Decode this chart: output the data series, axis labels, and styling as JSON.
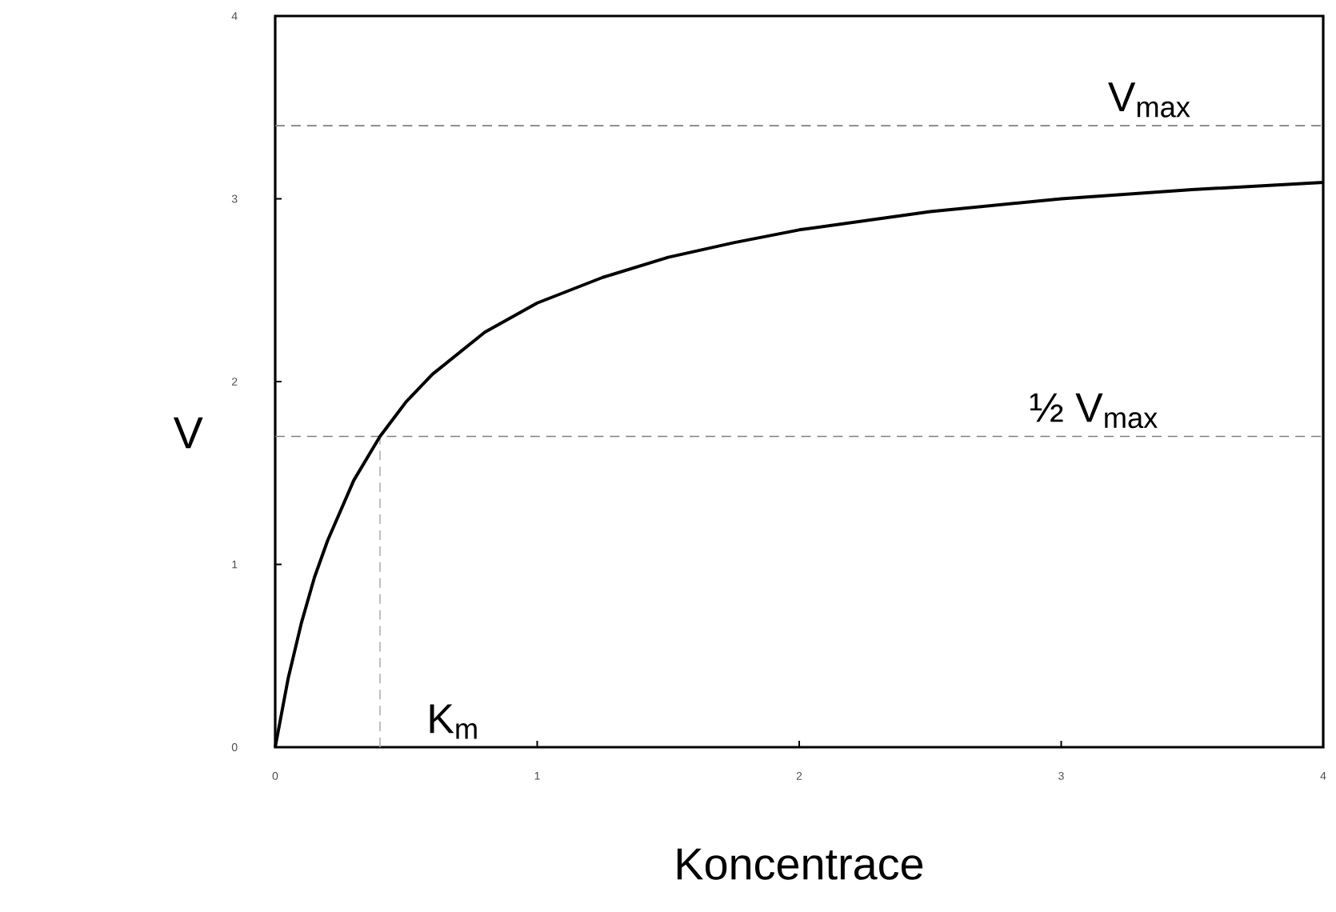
{
  "chart_data": {
    "type": "line",
    "xlabel": "Koncentrace",
    "ylabel": "V",
    "x": [
      0,
      0.05,
      0.1,
      0.15,
      0.2,
      0.3,
      0.4,
      0.5,
      0.6,
      0.8,
      1.0,
      1.25,
      1.5,
      1.75,
      2.0,
      2.5,
      3.0,
      3.5,
      4.0
    ],
    "values": [
      0,
      0.38,
      0.68,
      0.93,
      1.13,
      1.46,
      1.7,
      1.89,
      2.04,
      2.27,
      2.43,
      2.57,
      2.68,
      2.76,
      2.83,
      2.93,
      3.0,
      3.05,
      3.09
    ],
    "color": "#000000",
    "xlim": [
      0,
      4
    ],
    "ylim": [
      0,
      4
    ],
    "xticks": [
      0,
      1,
      2,
      3,
      4
    ],
    "yticks": [
      0,
      1,
      2,
      3,
      4
    ],
    "ref_lines": [
      {
        "axis": "y",
        "value": 3.4,
        "color": "#7f7f7f",
        "line_style": "dashed"
      },
      {
        "axis": "y",
        "value": 1.7,
        "color": "#7f7f7f",
        "line_style": "dashed"
      },
      {
        "axis": "x",
        "value": 0.4,
        "color": "#b0b0b0",
        "line_style": "dashed"
      }
    ],
    "annotations": [
      {
        "text": "V$_{max}$",
        "x": 3.0,
        "y": 3.4
      },
      {
        "text": "½ V$_{max}$",
        "x": 2.7,
        "y": 1.7
      },
      {
        "text": "K$_{m}$",
        "x": 0.4,
        "y": 0
      }
    ],
    "grid": false,
    "marker": "none",
    "line_style": "solid"
  }
}
